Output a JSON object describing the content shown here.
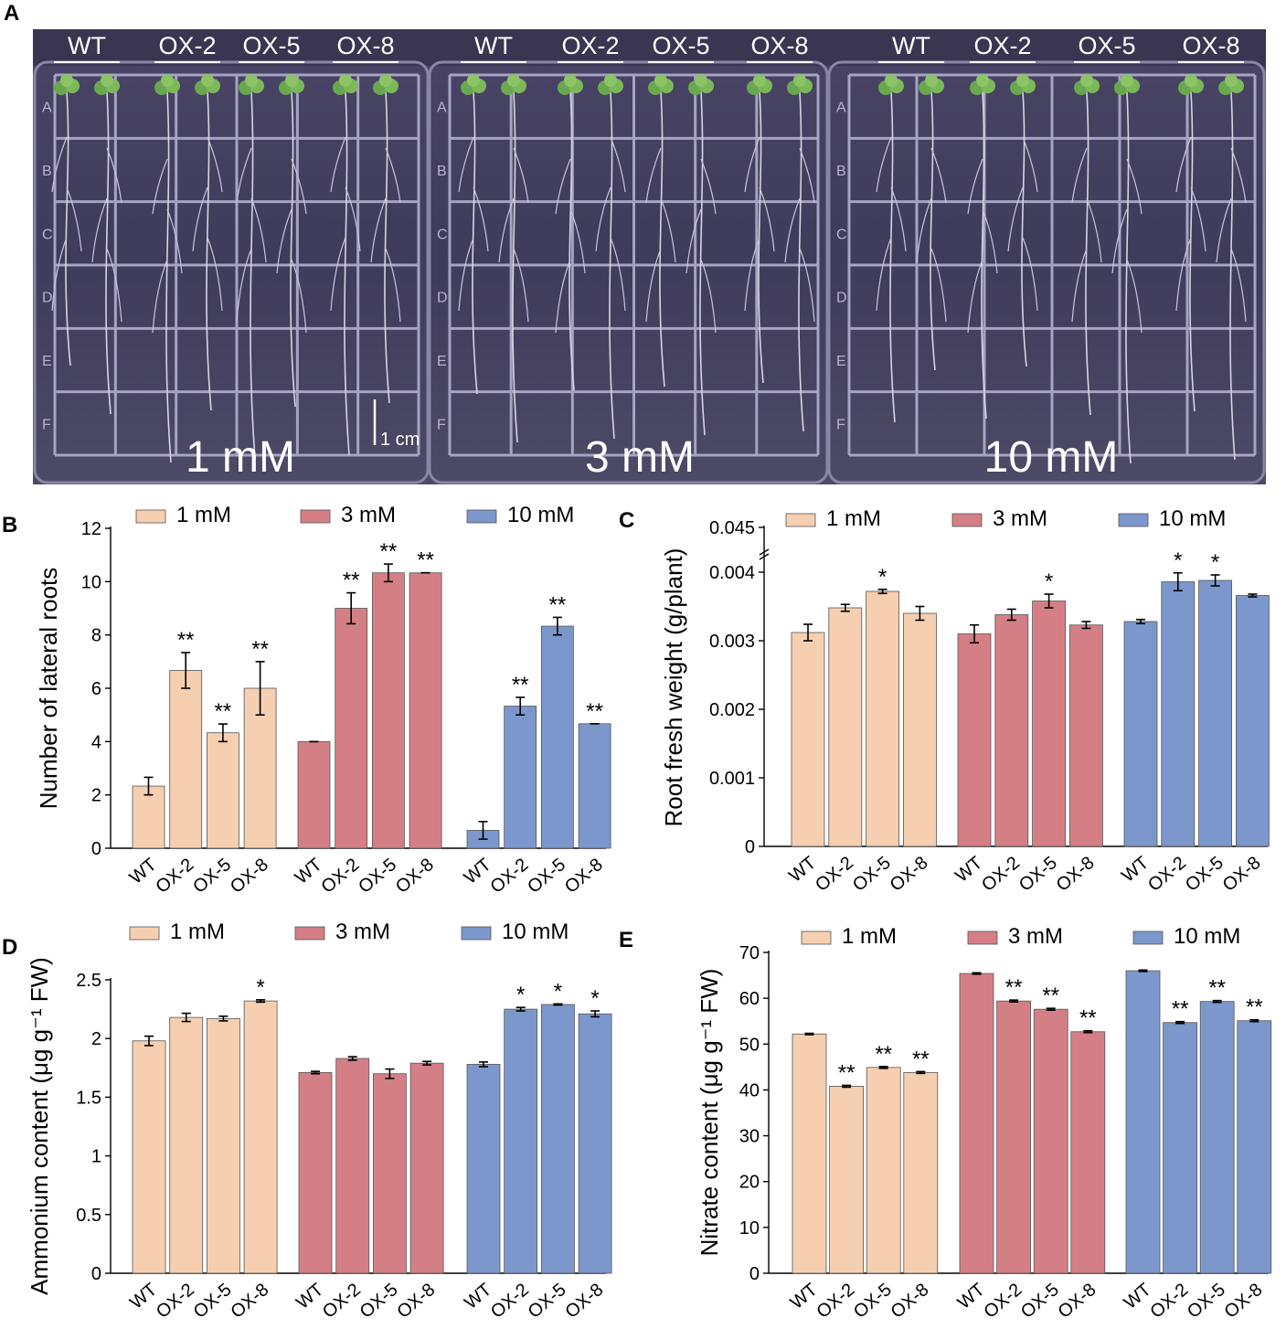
{
  "panel_a": {
    "letter": "A",
    "plates": [
      {
        "concentration": "1 mM",
        "genotypes": [
          "WT",
          "OX-2",
          "OX-5",
          "OX-8"
        ]
      },
      {
        "concentration": "3 mM",
        "genotypes": [
          "WT",
          "OX-2",
          "OX-5",
          "OX-8"
        ]
      },
      {
        "concentration": "10 mM",
        "genotypes": [
          "WT",
          "OX-2",
          "OX-5",
          "OX-8"
        ]
      }
    ],
    "scale_bar": "1 cm",
    "grid_rows": [
      "A",
      "B",
      "C",
      "D",
      "E",
      "F"
    ]
  },
  "colors": {
    "c1": "#f5cfb0",
    "c3": "#d47f86",
    "c10": "#7b97cc"
  },
  "chart_data": [
    {
      "id": "B",
      "letter": "B",
      "type": "bar",
      "ylabel": "Number of lateral roots",
      "categories": [
        "WT",
        "OX-2",
        "OX-5",
        "OX-8"
      ],
      "legend": [
        "1 mM",
        "3 mM",
        "10 mM"
      ],
      "ylim": [
        0,
        12
      ],
      "yticks": [
        0,
        2,
        4,
        6,
        8,
        10,
        12
      ],
      "series": [
        {
          "name": "1 mM",
          "values": [
            2.33,
            6.67,
            4.33,
            6.0
          ],
          "errors": [
            0.33,
            0.67,
            0.33,
            1.0
          ],
          "stars": [
            "",
            "**",
            "**",
            "**"
          ]
        },
        {
          "name": "3 mM",
          "values": [
            4.0,
            9.0,
            10.33,
            10.33
          ],
          "errors": [
            0.0,
            0.58,
            0.33,
            0.0
          ],
          "stars": [
            "",
            "**",
            "**",
            "**"
          ]
        },
        {
          "name": "10 mM",
          "values": [
            0.67,
            5.33,
            8.33,
            4.67
          ],
          "errors": [
            0.33,
            0.33,
            0.33,
            0.0
          ],
          "stars": [
            "",
            "**",
            "**",
            "**"
          ]
        }
      ]
    },
    {
      "id": "C",
      "letter": "C",
      "type": "bar",
      "ylabel": "Root fresh weight (g/plant)",
      "categories": [
        "WT",
        "OX-2",
        "OX-5",
        "OX-8"
      ],
      "legend": [
        "1 mM",
        "3 mM",
        "10 mM"
      ],
      "broken_axis": true,
      "ylim": [
        0,
        0.0045
      ],
      "yticks_lower": [
        0,
        0.001,
        0.002,
        0.003,
        0.004
      ],
      "ytick_labels_lower": [
        "0",
        "0.001",
        "0.002",
        "0.003",
        "0.004"
      ],
      "ytick_top": "0.045",
      "series": [
        {
          "name": "1 mM",
          "values": [
            0.00312,
            0.00348,
            0.00372,
            0.0034
          ],
          "errors": [
            0.00012,
            5e-05,
            3e-05,
            0.0001
          ],
          "stars": [
            "",
            "",
            "*",
            ""
          ]
        },
        {
          "name": "3 mM",
          "values": [
            0.0031,
            0.00338,
            0.00358,
            0.00323
          ],
          "errors": [
            0.00013,
            8e-05,
            0.0001,
            5e-05
          ],
          "stars": [
            "",
            "",
            "*",
            ""
          ]
        },
        {
          "name": "10 mM",
          "values": [
            0.00328,
            0.00386,
            0.00388,
            0.00366
          ],
          "errors": [
            3e-05,
            0.00013,
            8e-05,
            2e-05
          ],
          "stars": [
            "",
            "*",
            "*",
            ""
          ]
        }
      ]
    },
    {
      "id": "D",
      "letter": "D",
      "type": "bar",
      "ylabel": "Ammonium content (μg g⁻¹ FW)",
      "categories": [
        "WT",
        "OX-2",
        "OX-5",
        "OX-8"
      ],
      "legend": [
        "1 mM",
        "3 mM",
        "10 mM"
      ],
      "ylim": [
        0,
        2.5
      ],
      "yticks": [
        0,
        0.5,
        1,
        1.5,
        2,
        2.5
      ],
      "series": [
        {
          "name": "1 mM",
          "values": [
            1.98,
            2.18,
            2.17,
            2.32
          ],
          "errors": [
            0.04,
            0.035,
            0.02,
            0.01
          ],
          "stars": [
            "",
            "",
            "",
            "*"
          ]
        },
        {
          "name": "3 mM",
          "values": [
            1.71,
            1.83,
            1.7,
            1.79
          ],
          "errors": [
            0.01,
            0.015,
            0.04,
            0.015
          ],
          "stars": [
            "",
            "",
            "",
            ""
          ]
        },
        {
          "name": "10 mM",
          "values": [
            1.78,
            2.25,
            2.29,
            2.21
          ],
          "errors": [
            0.02,
            0.015,
            0.005,
            0.025
          ],
          "stars": [
            "",
            "*",
            "*",
            "*"
          ]
        }
      ]
    },
    {
      "id": "E",
      "letter": "E",
      "type": "bar",
      "ylabel": "Nitrate content (μg g⁻¹ FW)",
      "categories": [
        "WT",
        "OX-2",
        "OX-5",
        "OX-8"
      ],
      "legend": [
        "1 mM",
        "3 mM",
        "10 mM"
      ],
      "ylim": [
        0,
        70
      ],
      "yticks": [
        0,
        10,
        20,
        30,
        40,
        50,
        60,
        70
      ],
      "series": [
        {
          "name": "1 mM",
          "values": [
            52.2,
            40.8,
            44.9,
            43.8
          ],
          "errors": [
            0.15,
            0.2,
            0.2,
            0.2
          ],
          "stars": [
            "",
            "**",
            "**",
            "**"
          ]
        },
        {
          "name": "3 mM",
          "values": [
            65.4,
            59.4,
            57.6,
            52.7
          ],
          "errors": [
            0.15,
            0.2,
            0.2,
            0.2
          ],
          "stars": [
            "",
            "**",
            "**",
            "**"
          ]
        },
        {
          "name": "10 mM",
          "values": [
            66.0,
            54.7,
            59.3,
            55.1
          ],
          "errors": [
            0.15,
            0.2,
            0.2,
            0.2
          ],
          "stars": [
            "",
            "**",
            "**",
            "**"
          ]
        }
      ]
    }
  ]
}
